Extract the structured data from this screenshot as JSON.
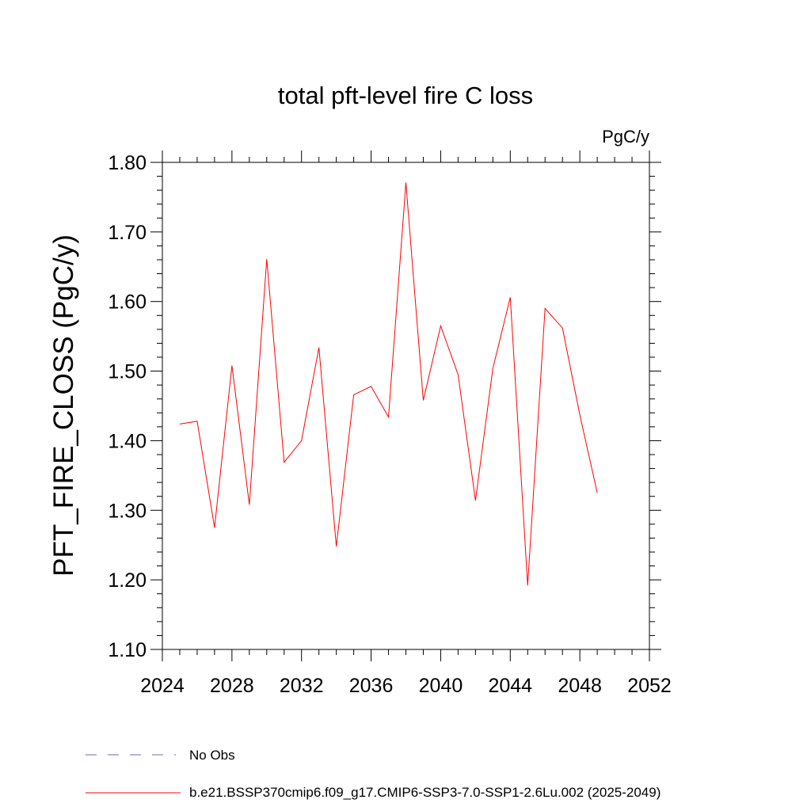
{
  "chart_data": {
    "type": "line",
    "title": "total pft-level fire C loss",
    "units": "PgC/y",
    "ylabel": "PFT_FIRE_CLOSS  (PgC/y)",
    "xlabel": "",
    "xlim": [
      2024,
      2052
    ],
    "ylim": [
      1.1,
      1.8
    ],
    "x_ticks": [
      2024,
      2028,
      2032,
      2036,
      2040,
      2044,
      2048,
      2052
    ],
    "y_ticks": [
      "1.10",
      "1.20",
      "1.30",
      "1.40",
      "1.50",
      "1.60",
      "1.70",
      "1.80"
    ],
    "series": [
      {
        "name": "b.e21.BSSP370cmip6.f09_g17.CMIP6-SSP3-7.0-SSP1-2.6Lu.002 (2025-2049)",
        "color": "#ff0000",
        "x": [
          2025,
          2026,
          2027,
          2028,
          2029,
          2030,
          2031,
          2032,
          2033,
          2034,
          2035,
          2036,
          2037,
          2038,
          2039,
          2040,
          2041,
          2042,
          2043,
          2044,
          2045,
          2046,
          2047,
          2048,
          2049
        ],
        "values": [
          1.424,
          1.428,
          1.275,
          1.508,
          1.308,
          1.661,
          1.369,
          1.4,
          1.534,
          1.248,
          1.466,
          1.478,
          1.434,
          1.771,
          1.458,
          1.565,
          1.495,
          1.314,
          1.504,
          1.606,
          1.192,
          1.59,
          1.562,
          1.437,
          1.325
        ]
      }
    ],
    "legend": [
      {
        "label": "No Obs",
        "color": "#6a6ab8",
        "style": "dashed"
      },
      {
        "label": "b.e21.BSSP370cmip6.f09_g17.CMIP6-SSP3-7.0-SSP1-2.6Lu.002 (2025-2049)",
        "color": "#ff0000",
        "style": "solid"
      }
    ],
    "grid": false
  }
}
